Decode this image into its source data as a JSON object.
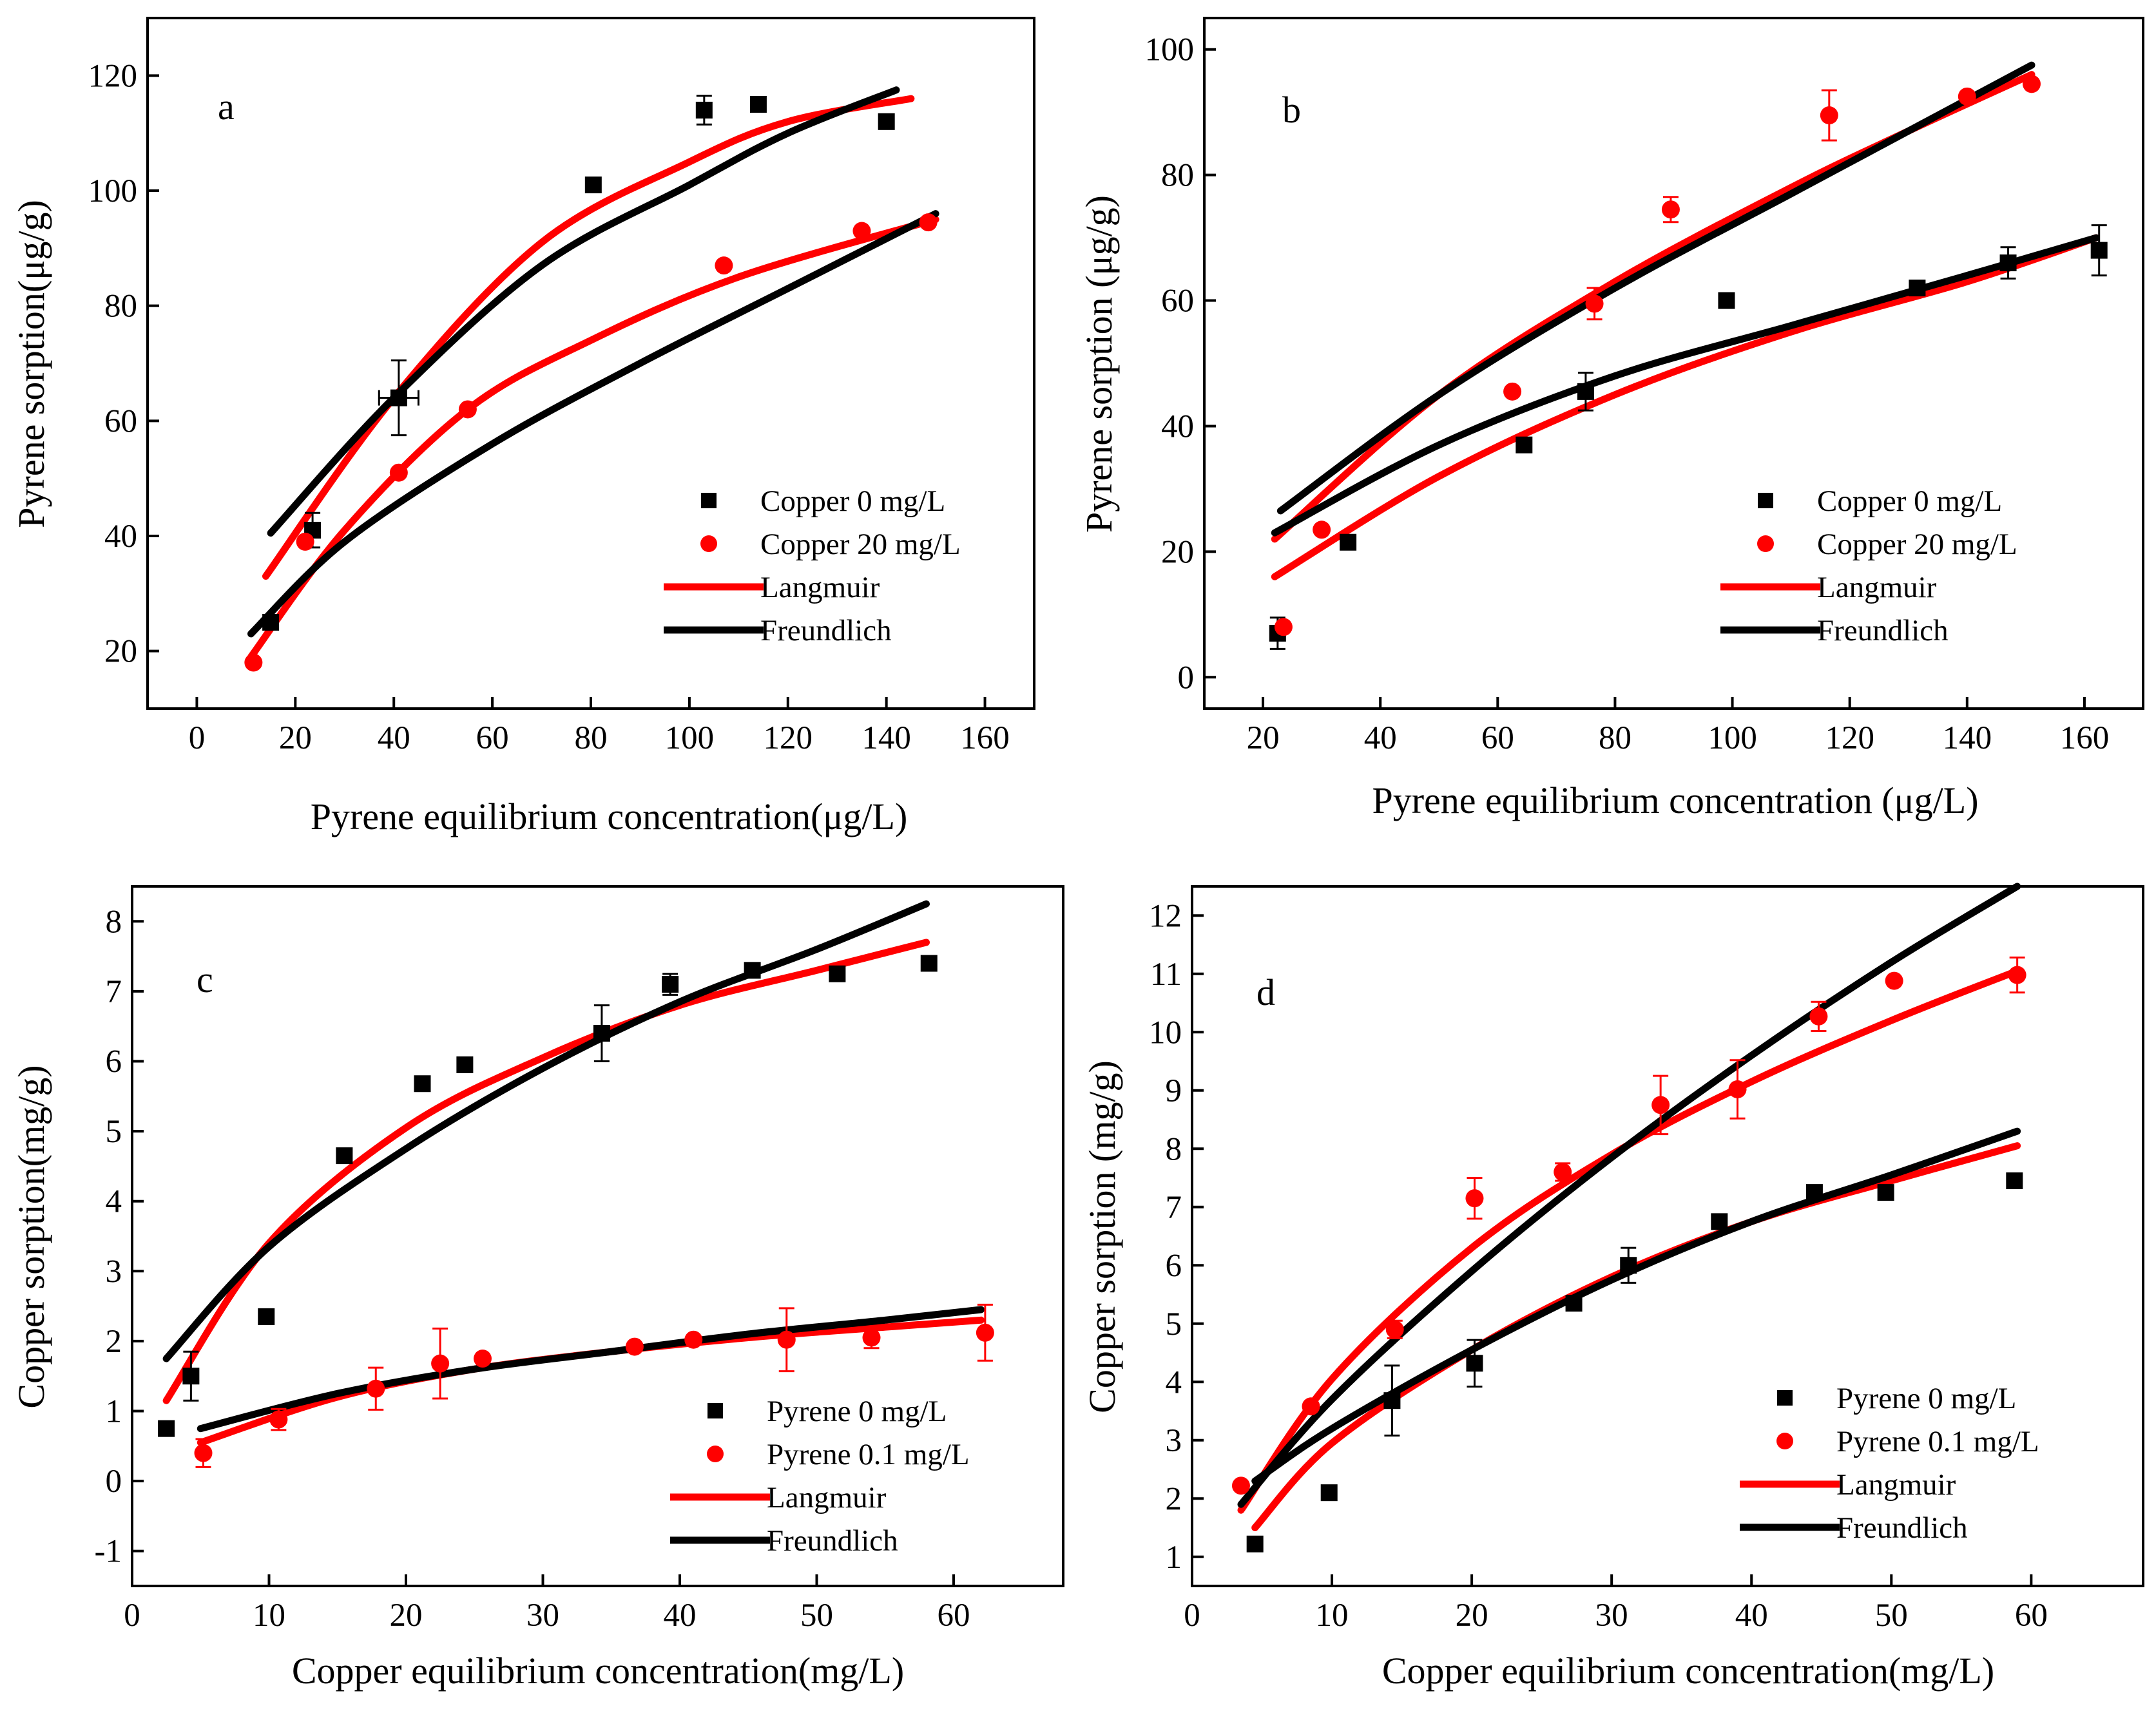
{
  "figure": {
    "colors": {
      "copper0": "#000000",
      "copper20": "#ff0000",
      "langmuir": "#ff0000",
      "freundlich": "#000000"
    }
  },
  "chart_data": [
    {
      "panel": "a",
      "type": "scatter",
      "xlabel": "Pyrene equilibrium concentration(μg/L)",
      "ylabel": "Pyrene sorption(μg/g)",
      "xlim": [
        -10,
        170
      ],
      "ylim": [
        10,
        130
      ],
      "xticks": [
        0,
        20,
        40,
        60,
        80,
        100,
        120,
        140,
        160
      ],
      "yticks": [
        20,
        40,
        60,
        80,
        100,
        120
      ],
      "legend_position": "bottom-right",
      "legend": [
        "Copper 0 mg/L",
        "Copper 20 mg/L",
        "Langmuir",
        "Freundlich"
      ],
      "series": [
        {
          "name": "Copper 0 mg/L",
          "marker": "square",
          "color": "#000000",
          "x": [
            15,
            23.5,
            41,
            80.5,
            103,
            114,
            140
          ],
          "y": [
            25,
            41,
            64,
            101,
            114,
            115,
            112
          ],
          "err": [
            0,
            3,
            6.5,
            0,
            2.5,
            0,
            0
          ],
          "xerr": [
            0,
            0,
            4,
            0,
            0,
            0,
            0
          ]
        },
        {
          "name": "Copper 20 mg/L",
          "marker": "circle",
          "color": "#ff0000",
          "x": [
            11.5,
            22,
            41,
            55,
            107,
            135,
            148.5
          ],
          "y": [
            18,
            39,
            51,
            62,
            87,
            93,
            94.5
          ],
          "err": [
            0,
            0,
            0,
            0,
            0,
            0,
            0
          ]
        }
      ],
      "fits": [
        {
          "model": "Langmuir",
          "color": "#ff0000",
          "x": [
            14,
            40,
            70,
            100,
            120,
            145
          ],
          "y": [
            33,
            64,
            91,
            105,
            112,
            116
          ]
        },
        {
          "model": "Freundlich",
          "color": "#000000",
          "x": [
            15,
            40,
            70,
            100,
            120,
            142
          ],
          "y": [
            40.5,
            64,
            87,
            101,
            110,
            117.5
          ]
        },
        {
          "model": "Langmuir",
          "color": "#ff0000",
          "x": [
            11,
            30,
            55,
            80,
            110,
            150
          ],
          "y": [
            19,
            41,
            62,
            74,
            85,
            95
          ]
        },
        {
          "model": "Freundlich",
          "color": "#000000",
          "x": [
            11,
            30,
            60,
            90,
            120,
            150
          ],
          "y": [
            23,
            39,
            56,
            70,
            83,
            96
          ]
        }
      ]
    },
    {
      "panel": "b",
      "type": "scatter",
      "xlabel": "Pyrene equilibrium concentration (μg/L)",
      "ylabel": "Pyrene sorption (μg/g)",
      "xlim": [
        10,
        170
      ],
      "ylim": [
        -5,
        105
      ],
      "xticks": [
        20,
        40,
        60,
        80,
        100,
        120,
        140,
        160
      ],
      "yticks": [
        0,
        20,
        40,
        60,
        80,
        100
      ],
      "legend_position": "bottom-right",
      "legend": [
        "Copper 0 mg/L",
        "Copper 20 mg/L",
        "Langmuir",
        "Freundlich"
      ],
      "series": [
        {
          "name": "Copper 0 mg/L",
          "marker": "square",
          "color": "#000000",
          "x": [
            22.5,
            34.5,
            64.5,
            75,
            99,
            131.5,
            147,
            162.5
          ],
          "y": [
            7,
            21.5,
            37,
            45.5,
            60,
            62,
            66,
            68
          ],
          "err": [
            2.5,
            0,
            0,
            3,
            0,
            0,
            2.5,
            4
          ]
        },
        {
          "name": "Copper 20 mg/L",
          "marker": "circle",
          "color": "#ff0000",
          "x": [
            23.5,
            30,
            62.5,
            76.5,
            89.5,
            116.5,
            140,
            151
          ],
          "y": [
            8,
            23.5,
            45.5,
            59.5,
            74.5,
            89.5,
            92.5,
            94.5
          ],
          "err": [
            0,
            0,
            0,
            2.5,
            2,
            4,
            0,
            0
          ]
        }
      ],
      "fits": [
        {
          "model": "Langmuir",
          "color": "#ff0000",
          "x": [
            22,
            50,
            80,
            110,
            130,
            151
          ],
          "y": [
            22,
            45,
            63,
            78,
            87,
            96
          ]
        },
        {
          "model": "Freundlich",
          "color": "#000000",
          "x": [
            23,
            50,
            80,
            110,
            130,
            151
          ],
          "y": [
            26.5,
            45,
            62,
            77,
            87,
            97.5
          ]
        },
        {
          "model": "Langmuir",
          "color": "#ff0000",
          "x": [
            22,
            50,
            80,
            110,
            140,
            162
          ],
          "y": [
            16,
            32,
            45,
            55,
            63,
            70
          ]
        },
        {
          "model": "Freundlich",
          "color": "#000000",
          "x": [
            22,
            50,
            80,
            110,
            140,
            162
          ],
          "y": [
            23,
            37,
            48,
            56,
            64,
            70
          ]
        }
      ]
    },
    {
      "panel": "c",
      "type": "scatter",
      "xlabel": "Copper equilibrium concentration(mg/L)",
      "ylabel": "Copper sorption(mg/g)",
      "xlim": [
        0,
        68
      ],
      "ylim": [
        -1.5,
        8.5
      ],
      "xticks": [
        0,
        10,
        20,
        30,
        40,
        50,
        60
      ],
      "yticks": [
        -1,
        0,
        1,
        2,
        3,
        4,
        5,
        6,
        7,
        8
      ],
      "legend_position": "bottom-right",
      "legend": [
        "Pyrene 0 mg/L",
        "Pyrene 0.1 mg/L",
        "Langmuir",
        "Freundlich"
      ],
      "series": [
        {
          "name": "Pyrene 0 mg/L",
          "marker": "square",
          "color": "#000000",
          "x": [
            2.5,
            4.3,
            9.8,
            15.5,
            21.2,
            24.3,
            34.3,
            39.3,
            45.3,
            51.5,
            58.2
          ],
          "y": [
            0.75,
            1.5,
            2.35,
            4.65,
            5.68,
            5.95,
            6.4,
            7.1,
            7.3,
            7.25,
            7.4
          ],
          "err": [
            0,
            0.35,
            0.1,
            0,
            0,
            0,
            0.4,
            0.15,
            0,
            0.1,
            0.1
          ]
        },
        {
          "name": "Pyrene 0.1 mg/L",
          "marker": "circle",
          "color": "#ff0000",
          "x": [
            5.2,
            10.7,
            17.8,
            22.5,
            25.6,
            36.7,
            41,
            47.8,
            54,
            62.3
          ],
          "y": [
            0.4,
            0.88,
            1.32,
            1.68,
            1.75,
            1.92,
            2.02,
            2.02,
            2.05,
            2.12
          ],
          "err": [
            0.2,
            0.15,
            0.3,
            0.5,
            0,
            0,
            0,
            0.45,
            0.15,
            0.4
          ]
        }
      ],
      "fits": [
        {
          "model": "Langmuir",
          "color": "#ff0000",
          "x": [
            2.5,
            10,
            20,
            30,
            40,
            50,
            58
          ],
          "y": [
            1.15,
            3.4,
            5.05,
            6.05,
            6.8,
            7.3,
            7.7
          ]
        },
        {
          "model": "Freundlich",
          "color": "#000000",
          "x": [
            2.5,
            10,
            20,
            30,
            40,
            50,
            58
          ],
          "y": [
            1.75,
            3.35,
            4.75,
            5.9,
            6.85,
            7.6,
            8.25
          ]
        },
        {
          "model": "Langmuir",
          "color": "#ff0000",
          "x": [
            5,
            15,
            25,
            35,
            45,
            55,
            62
          ],
          "y": [
            0.55,
            1.2,
            1.6,
            1.85,
            2.05,
            2.2,
            2.3
          ]
        },
        {
          "model": "Freundlich",
          "color": "#000000",
          "x": [
            5,
            15,
            25,
            35,
            45,
            55,
            62
          ],
          "y": [
            0.75,
            1.25,
            1.6,
            1.85,
            2.1,
            2.3,
            2.45
          ]
        }
      ]
    },
    {
      "panel": "d",
      "type": "scatter",
      "xlabel": "Copper equilibrium concentration(mg/L)",
      "ylabel": "Copper sorption (mg/g)",
      "xlim": [
        0,
        68
      ],
      "ylim": [
        0.5,
        12.5
      ],
      "xticks": [
        0,
        10,
        20,
        30,
        40,
        50,
        60
      ],
      "yticks": [
        1,
        2,
        3,
        4,
        5,
        6,
        7,
        8,
        9,
        10,
        11,
        12
      ],
      "legend_position": "bottom-right",
      "legend": [
        "Pyrene 0 mg/L",
        "Pyrene 0.1 mg/L",
        "Langmuir",
        "Freundlich"
      ],
      "series": [
        {
          "name": "Pyrene 0 mg/L",
          "marker": "square",
          "color": "#000000",
          "x": [
            4.5,
            9.8,
            14.3,
            20.2,
            27.3,
            31.2,
            37.7,
            44.5,
            49.6,
            58.8
          ],
          "y": [
            1.22,
            2.1,
            3.68,
            4.32,
            5.35,
            6.0,
            6.75,
            7.25,
            7.25,
            7.45
          ],
          "err": [
            0,
            0,
            0.6,
            0.4,
            0,
            0.3,
            0,
            0,
            0,
            0
          ]
        },
        {
          "name": "Pyrene 0.1 mg/L",
          "marker": "circle",
          "color": "#ff0000",
          "x": [
            3.5,
            8.5,
            14.5,
            20.2,
            26.5,
            33.5,
            39,
            44.8,
            50.2,
            59
          ],
          "y": [
            2.22,
            3.58,
            4.9,
            7.15,
            7.6,
            8.75,
            9.02,
            10.27,
            10.88,
            10.98
          ],
          "err": [
            0,
            0,
            0.15,
            0.35,
            0.15,
            0.5,
            0.5,
            0.25,
            0,
            0.3
          ]
        }
      ],
      "fits": [
        {
          "model": "Langmuir",
          "color": "#ff0000",
          "x": [
            3.5,
            10,
            20,
            30,
            40,
            50,
            59
          ],
          "y": [
            1.8,
            4.05,
            6.3,
            7.9,
            9.15,
            10.2,
            11.05
          ]
        },
        {
          "model": "Freundlich",
          "color": "#000000",
          "x": [
            3.5,
            10,
            20,
            30,
            40,
            50,
            59
          ],
          "y": [
            1.9,
            3.7,
            5.9,
            7.85,
            9.6,
            11.2,
            12.5
          ]
        },
        {
          "model": "Langmuir",
          "color": "#ff0000",
          "x": [
            4.5,
            10,
            20,
            30,
            40,
            50,
            59
          ],
          "y": [
            1.5,
            2.95,
            4.55,
            5.8,
            6.75,
            7.45,
            8.05
          ]
        },
        {
          "model": "Freundlich",
          "color": "#000000",
          "x": [
            4.5,
            10,
            20,
            30,
            40,
            50,
            59
          ],
          "y": [
            2.3,
            3.2,
            4.55,
            5.75,
            6.75,
            7.55,
            8.3
          ]
        }
      ]
    }
  ]
}
